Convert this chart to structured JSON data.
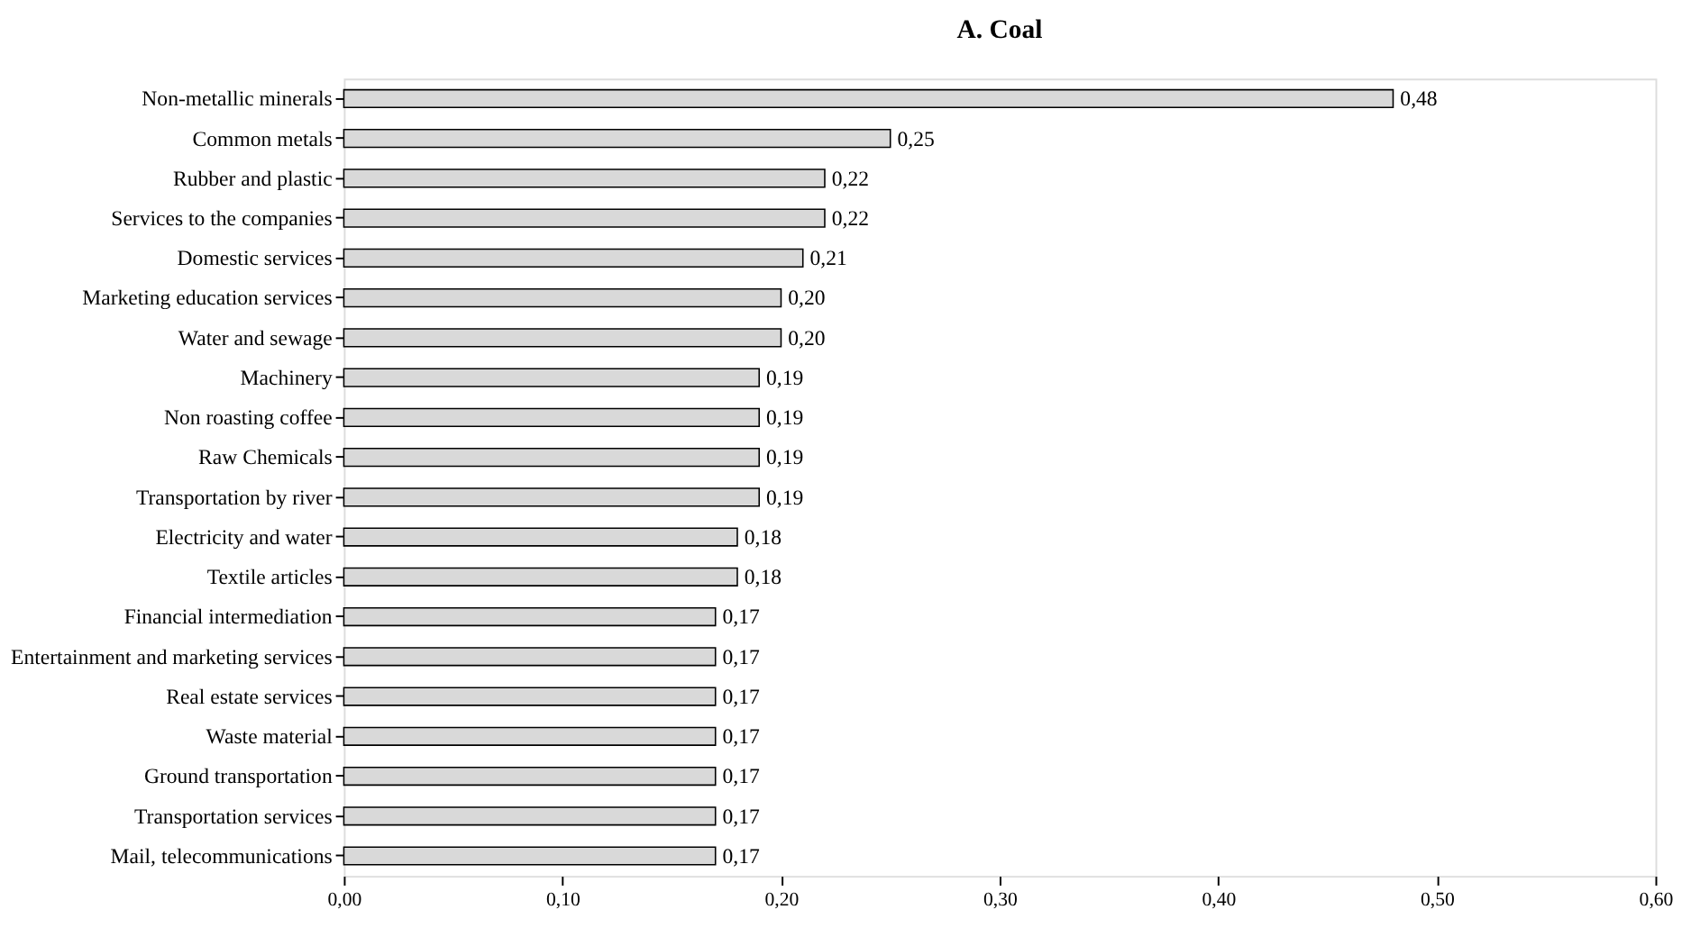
{
  "chart_data": {
    "type": "bar",
    "orientation": "horizontal",
    "title": "A. Coal",
    "categories": [
      "Non-metallic minerals",
      "Common metals",
      "Rubber and plastic",
      "Services to the companies",
      "Domestic services",
      "Marketing education services",
      "Water and sewage",
      "Machinery",
      "Non roasting coffee",
      "Raw Chemicals",
      "Transportation by river",
      "Electricity and water",
      "Textile articles",
      "Financial intermediation",
      "Entertainment and marketing services",
      "Real estate services",
      "Waste material",
      "Ground transportation",
      "Transportation services",
      "Mail, telecommunications"
    ],
    "values": [
      0.48,
      0.25,
      0.22,
      0.22,
      0.21,
      0.2,
      0.2,
      0.19,
      0.19,
      0.19,
      0.19,
      0.18,
      0.18,
      0.17,
      0.17,
      0.17,
      0.17,
      0.17,
      0.17,
      0.17
    ],
    "value_labels": [
      "0,48",
      "0,25",
      "0,22",
      "0,22",
      "0,21",
      "0,20",
      "0,20",
      "0,19",
      "0,19",
      "0,19",
      "0,19",
      "0,18",
      "0,18",
      "0,17",
      "0,17",
      "0,17",
      "0,17",
      "0,17",
      "0,17",
      "0,17"
    ],
    "color": "#d9d9d9",
    "xlim": [
      0,
      0.6
    ],
    "xticks": [
      {
        "value": 0,
        "label": "0,00"
      },
      {
        "value": 0.1,
        "label": "0,10"
      },
      {
        "value": 0.2,
        "label": "0,20"
      },
      {
        "value": 0.3,
        "label": "0,30"
      },
      {
        "value": 0.4,
        "label": "0,40"
      },
      {
        "value": 0.5,
        "label": "0,50"
      },
      {
        "value": 0.6,
        "label": "0,60"
      }
    ],
    "grid": false
  }
}
